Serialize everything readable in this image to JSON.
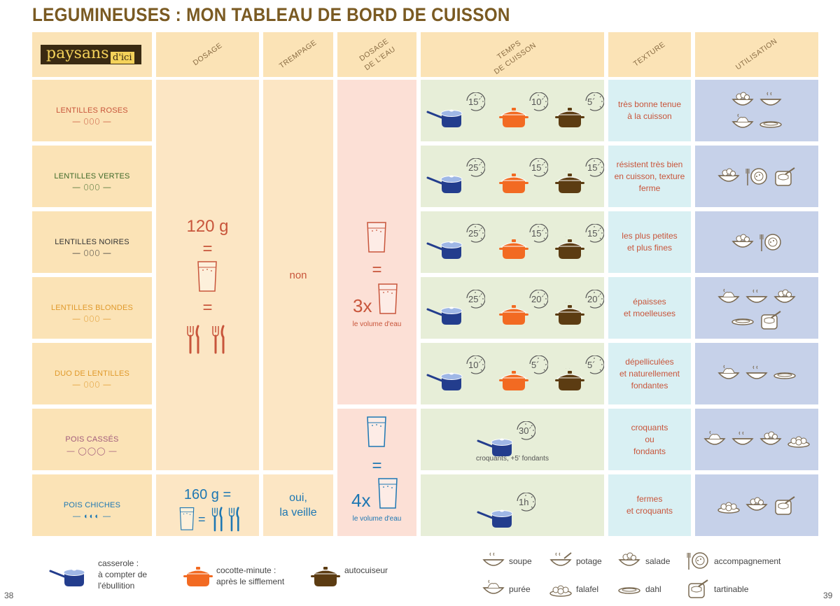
{
  "title": "LEGUMINEUSES : MON TABLEAU DE BORD DE CUISSON",
  "logo": {
    "main": "paysans",
    "sub": "d'ici"
  },
  "headers": {
    "dosage": "DOSAGE",
    "trempage": "TREMPAGE",
    "dosage_eau": [
      "DOSAGE",
      "DE L'EAU"
    ],
    "temps": [
      "TEMPS",
      "DE CUISSON"
    ],
    "texture": "TEXTURE",
    "utilisation": "UTILISATION"
  },
  "rows": [
    {
      "name": "LENTILLES ROSES",
      "sym": "— ⬯⬯⬯ —",
      "color": "#c8553b",
      "times": [
        "15´",
        "10´",
        "5´"
      ],
      "texture": "très bonne tenue\nà la cuisson",
      "uses": [
        "salade",
        "soupe",
        "puree",
        "dahl"
      ]
    },
    {
      "name": "LENTILLES VERTES",
      "sym": "— ⬯⬯⬯ —",
      "color": "#3f6a2a",
      "times": [
        "25´",
        "15´",
        "15´"
      ],
      "texture": "résistent très bien\nen cuisson, texture\nferme",
      "uses": [
        "salade",
        "accompagnement",
        "tartinable"
      ]
    },
    {
      "name": "LENTILLES NOIRES",
      "sym": "— ⬯⬯⬯ —",
      "color": "#333333",
      "times": [
        "25´",
        "15´",
        "15´"
      ],
      "texture": "les plus petites\net plus fines",
      "uses": [
        "salade",
        "accompagnement"
      ]
    },
    {
      "name": "LENTILLES BLONDES",
      "sym": "— ⬯⬯⬯ —",
      "color": "#e09a2c",
      "times": [
        "25´",
        "20´",
        "20´"
      ],
      "texture": "épaisses\net moelleuses",
      "uses": [
        "puree",
        "soupe",
        "salade",
        "dahl",
        "tartinable"
      ]
    },
    {
      "name": "DUO DE LENTILLES",
      "sym": "— ⬯⬯⬯ —",
      "color": "#e09a2c",
      "times": [
        "10´",
        "5´",
        "5´"
      ],
      "texture": "dépelliculées\net naturellement\nfondantes",
      "uses": [
        "puree",
        "soupe",
        "dahl"
      ]
    },
    {
      "name": "POIS CASSÉS",
      "sym": "— ◯◯◯ —",
      "color": "#a25c7c",
      "times": [
        "30´"
      ],
      "texture": "croquants\nou\nfondants",
      "uses": [
        "puree",
        "soupe",
        "salade",
        "falafel"
      ],
      "note": "croquants, +5' fondants"
    },
    {
      "name": "POIS CHICHES",
      "sym": "— ◐◐◐ —",
      "color": "#1d77b3",
      "times": [
        "1h"
      ],
      "texture": "fermes\net croquants",
      "uses": [
        "falafel",
        "salade",
        "tartinable"
      ]
    }
  ],
  "dosage_lentils": "120 g",
  "dosage_chickpeas": "160 g =",
  "trempage_lentils": "non",
  "trempage_chickpeas": "oui,\nla veille",
  "eau_lentils": {
    "mult": "3x",
    "text": "le volume d'eau"
  },
  "eau_chickpeas": {
    "mult": "4x",
    "text": "le volume d'eau"
  },
  "legend_pots": [
    {
      "name": "casserole",
      "text": "casserole :\nà compter de\nl'ébullition"
    },
    {
      "name": "cocotte",
      "text": "cocotte-minute :\naprès le sifflement"
    },
    {
      "name": "autocuiseur",
      "text": "autocuiseur"
    }
  ],
  "legend_uses": [
    {
      "icon": "soupe",
      "label": "soupe"
    },
    {
      "icon": "potage",
      "label": "potage"
    },
    {
      "icon": "salade",
      "label": "salade"
    },
    {
      "icon": "accompagnement",
      "label": "accompagnement"
    },
    {
      "icon": "puree",
      "label": "purée"
    },
    {
      "icon": "falafel",
      "label": "falafel"
    },
    {
      "icon": "dahl",
      "label": "dahl"
    },
    {
      "icon": "tartinable",
      "label": "tartinable"
    }
  ],
  "page_left": "38",
  "page_right": "39",
  "colors": {
    "casserole": "#233d8d",
    "cocotte": "#f26a22",
    "autocuiseur": "#5c3c12",
    "accent": "#c8553b",
    "chickpea_blue": "#1d77b3"
  }
}
